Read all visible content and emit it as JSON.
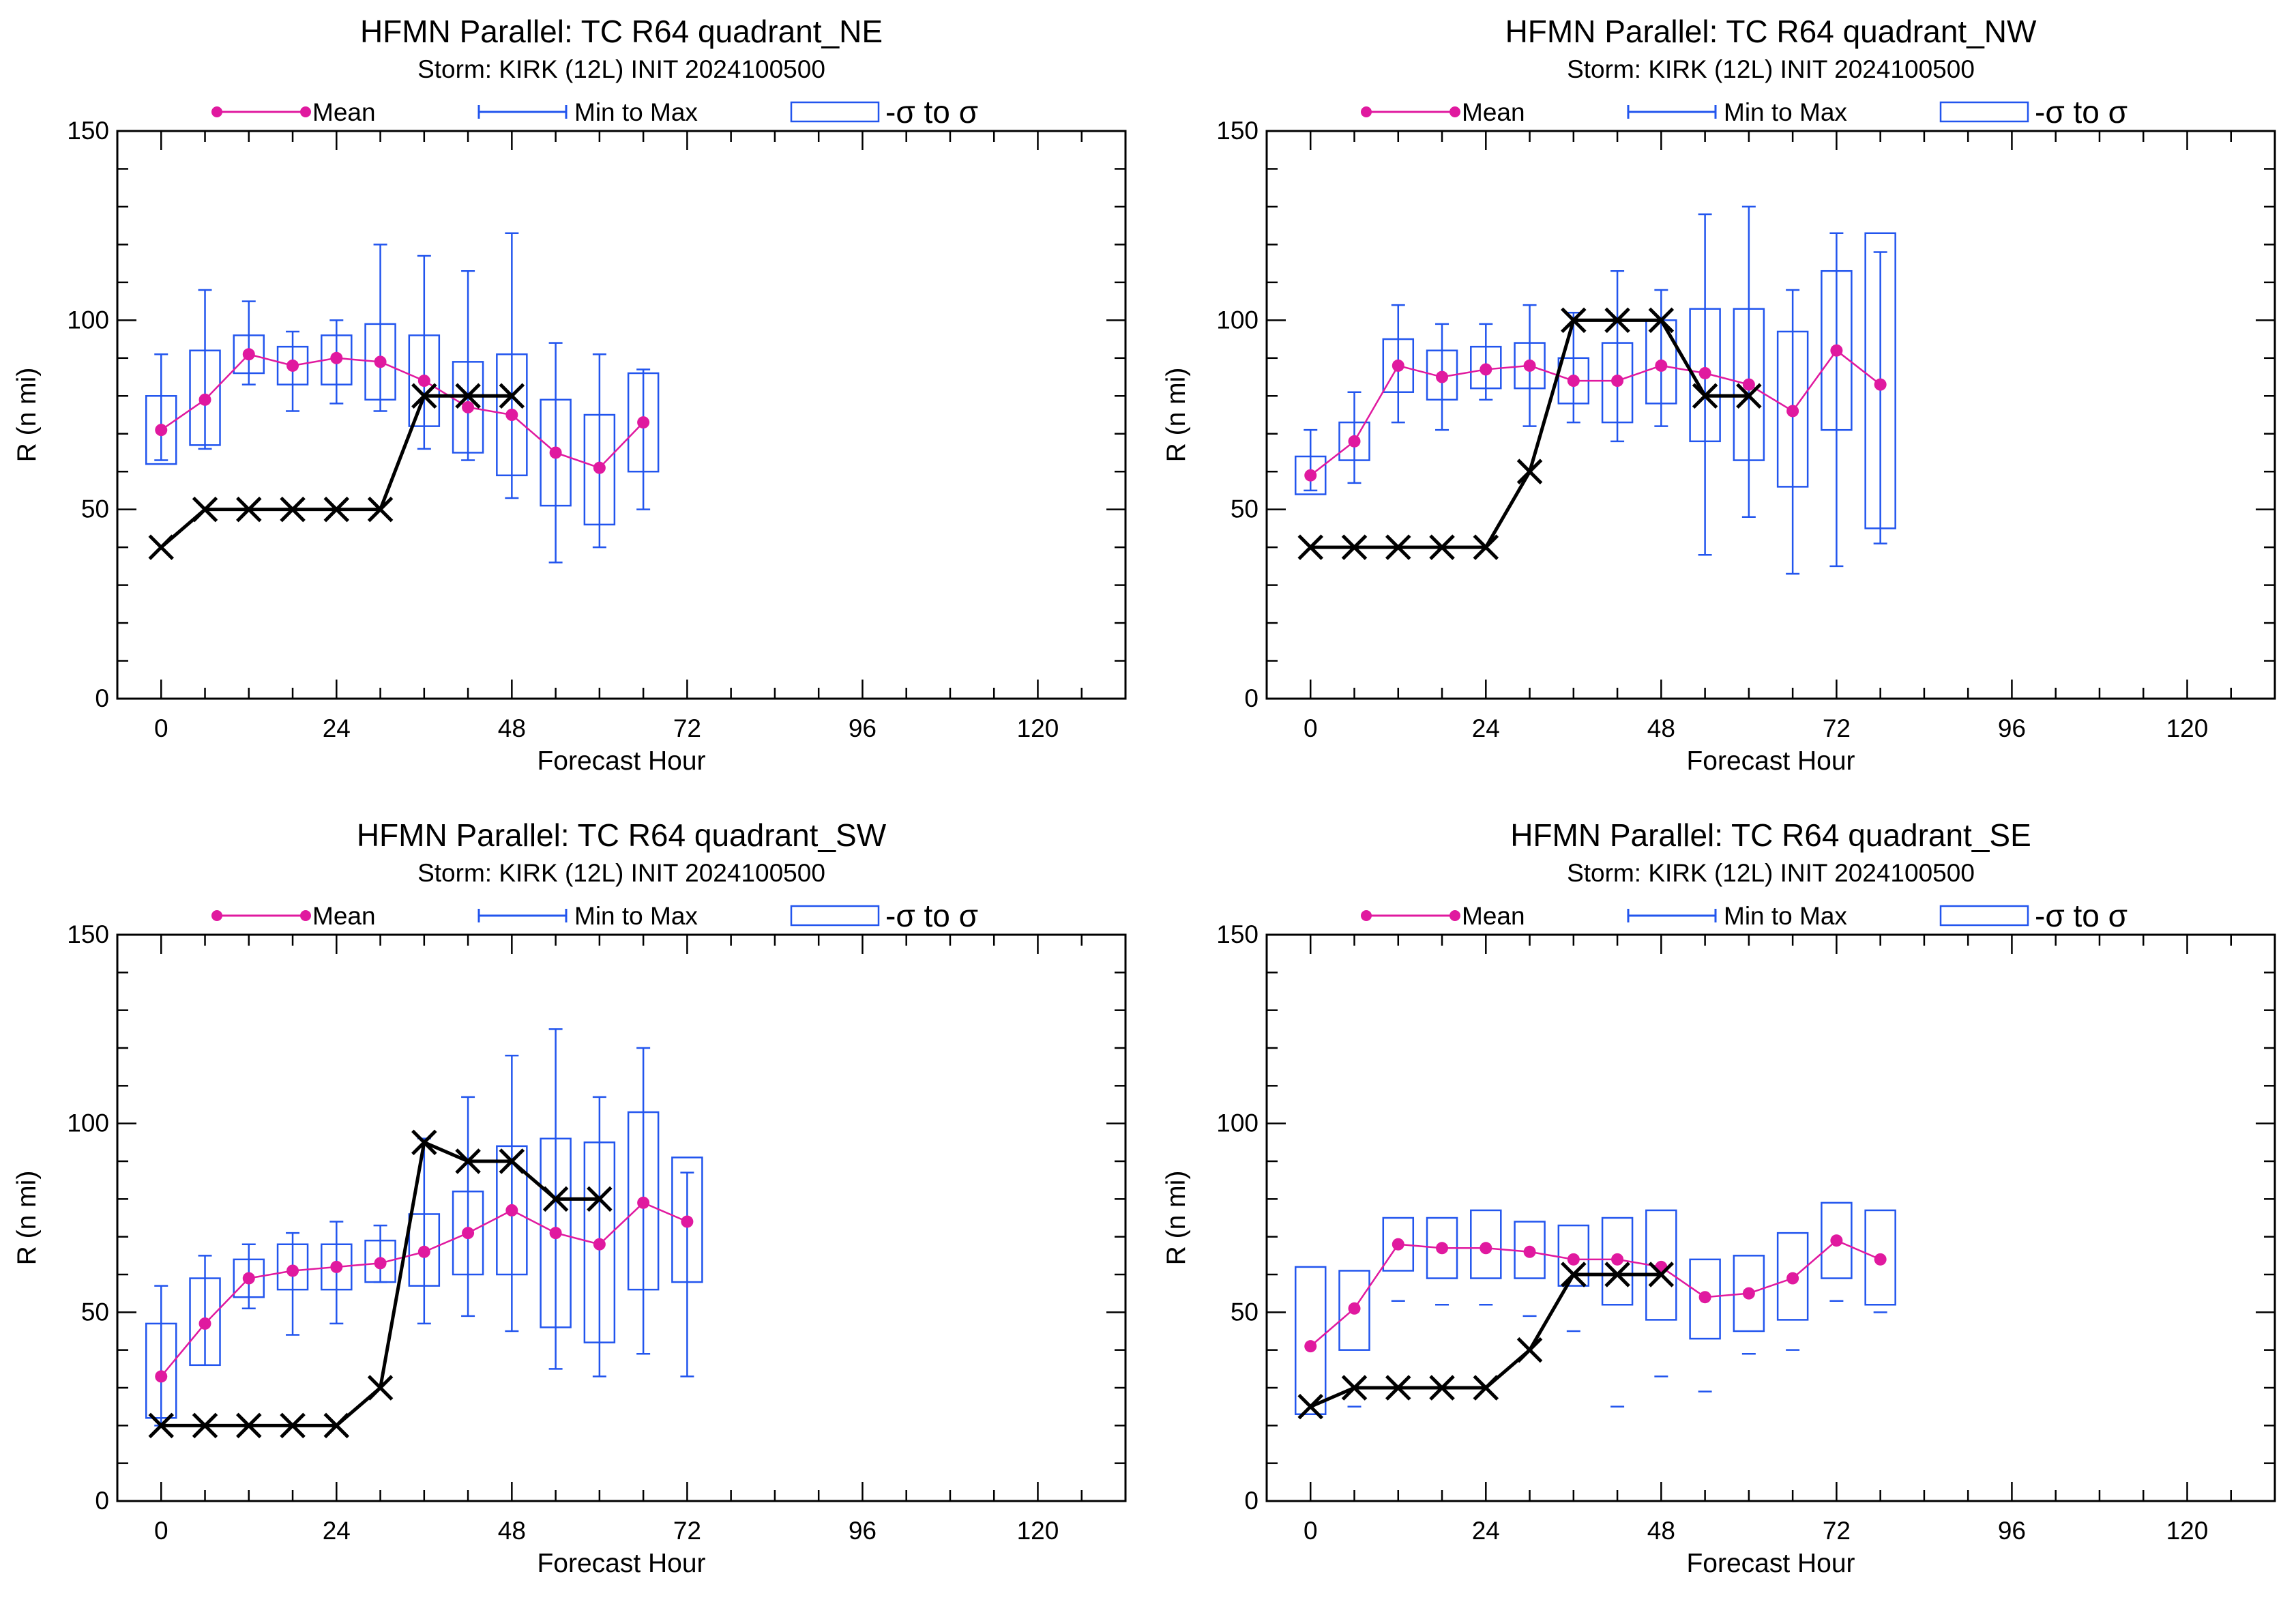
{
  "legend": {
    "mean": "Mean",
    "minmax": "Min to Max",
    "sigma": "-σ to σ"
  },
  "colors": {
    "mean": "#e0199f",
    "ensemble": "#2255ee",
    "observed": "#000000"
  },
  "chart_data": [
    {
      "type": "box",
      "title": "HFMN Parallel: TC  R64 quadrant_NE",
      "subtitle": "Storm: KIRK (12L) INIT 2024100500",
      "xlabel": "Forecast Hour",
      "ylabel": "R (n mi)",
      "xlim": [
        -6,
        132
      ],
      "ylim": [
        0,
        150
      ],
      "xticks": [
        0,
        24,
        48,
        72,
        96,
        120
      ],
      "yticks": [
        0,
        50,
        100,
        150
      ],
      "series": [
        {
          "name": "Mean",
          "x": [
            0,
            6,
            12,
            18,
            24,
            30,
            36,
            42,
            48,
            54,
            60,
            66
          ],
          "y": [
            71,
            79,
            91,
            88,
            90,
            89,
            84,
            77,
            75,
            65,
            61,
            73
          ]
        },
        {
          "name": "Min to Max",
          "x": [
            0,
            6,
            12,
            18,
            24,
            30,
            36,
            42,
            48,
            54,
            60,
            66
          ],
          "min": [
            63,
            66,
            83,
            76,
            78,
            76,
            66,
            63,
            53,
            36,
            40,
            50
          ],
          "max": [
            91,
            108,
            105,
            97,
            100,
            120,
            117,
            113,
            123,
            94,
            91,
            87
          ]
        },
        {
          "name": "-σ to σ",
          "x": [
            0,
            6,
            12,
            18,
            24,
            30,
            36,
            42,
            48,
            54,
            60,
            66
          ],
          "low": [
            62,
            67,
            86,
            83,
            83,
            79,
            72,
            65,
            59,
            51,
            46,
            60
          ],
          "high": [
            80,
            92,
            96,
            93,
            96,
            99,
            96,
            89,
            91,
            79,
            75,
            86
          ]
        },
        {
          "x": [
            0,
            6,
            12,
            18,
            24,
            30,
            36,
            42,
            48
          ],
          "y": [
            40,
            50,
            50,
            50,
            50,
            50,
            80,
            80,
            80
          ]
        }
      ]
    },
    {
      "type": "box",
      "title": "HFMN Parallel: TC  R64 quadrant_NW",
      "subtitle": "Storm: KIRK (12L) INIT 2024100500",
      "xlabel": "Forecast Hour",
      "ylabel": "R (n mi)",
      "xlim": [
        -6,
        132
      ],
      "ylim": [
        0,
        150
      ],
      "xticks": [
        0,
        24,
        48,
        72,
        96,
        120
      ],
      "yticks": [
        0,
        50,
        100,
        150
      ],
      "series": [
        {
          "name": "Mean",
          "x": [
            0,
            6,
            12,
            18,
            24,
            30,
            36,
            42,
            48,
            54,
            60,
            66,
            72,
            78
          ],
          "y": [
            59,
            68,
            88,
            85,
            87,
            88,
            84,
            84,
            88,
            86,
            83,
            76,
            92,
            83
          ]
        },
        {
          "name": "Min to Max",
          "x": [
            0,
            6,
            12,
            18,
            24,
            30,
            36,
            42,
            48,
            54,
            60,
            66,
            72,
            78
          ],
          "min": [
            55,
            57,
            73,
            71,
            79,
            72,
            73,
            68,
            72,
            38,
            48,
            33,
            35,
            41
          ],
          "max": [
            71,
            81,
            104,
            99,
            99,
            104,
            102,
            113,
            108,
            128,
            130,
            108,
            123,
            118
          ]
        },
        {
          "name": "-σ to σ",
          "x": [
            0,
            6,
            12,
            18,
            24,
            30,
            36,
            42,
            48,
            54,
            60,
            66,
            72,
            78
          ],
          "low": [
            54,
            63,
            81,
            79,
            82,
            82,
            78,
            73,
            78,
            68,
            63,
            56,
            71,
            45
          ],
          "high": [
            64,
            73,
            95,
            92,
            93,
            94,
            90,
            94,
            100,
            103,
            103,
            97,
            113,
            123
          ]
        },
        {
          "x": [
            0,
            6,
            12,
            18,
            24,
            30,
            36,
            42,
            48,
            54,
            60
          ],
          "y": [
            40,
            40,
            40,
            40,
            40,
            60,
            100,
            100,
            100,
            80,
            80
          ]
        }
      ]
    },
    {
      "type": "box",
      "title": "HFMN Parallel: TC  R64 quadrant_SW",
      "subtitle": "Storm: KIRK (12L) INIT 2024100500",
      "xlabel": "Forecast Hour",
      "ylabel": "R (n mi)",
      "xlim": [
        -6,
        132
      ],
      "ylim": [
        0,
        150
      ],
      "xticks": [
        0,
        24,
        48,
        72,
        96,
        120
      ],
      "yticks": [
        0,
        50,
        100,
        150
      ],
      "series": [
        {
          "name": "Mean",
          "x": [
            0,
            6,
            12,
            18,
            24,
            30,
            36,
            42,
            48,
            54,
            60,
            66,
            72
          ],
          "y": [
            33,
            47,
            59,
            61,
            62,
            63,
            66,
            71,
            77,
            71,
            68,
            79,
            74
          ]
        },
        {
          "name": "Min to Max",
          "x": [
            0,
            6,
            12,
            18,
            24,
            30,
            36,
            42,
            48,
            54,
            60,
            66,
            72
          ],
          "min": [
            20,
            36,
            51,
            44,
            47,
            58,
            47,
            49,
            45,
            35,
            33,
            39,
            33
          ],
          "max": [
            57,
            65,
            68,
            71,
            74,
            73,
            96,
            107,
            118,
            125,
            107,
            120,
            87
          ]
        },
        {
          "name": "-σ to σ",
          "x": [
            0,
            6,
            12,
            18,
            24,
            30,
            36,
            42,
            48,
            54,
            60,
            66,
            72
          ],
          "low": [
            22,
            36,
            54,
            56,
            56,
            58,
            57,
            60,
            60,
            46,
            42,
            56,
            58
          ],
          "high": [
            47,
            59,
            64,
            68,
            68,
            69,
            76,
            82,
            94,
            96,
            95,
            103,
            91
          ]
        },
        {
          "x": [
            0,
            6,
            12,
            18,
            24,
            30,
            36,
            42,
            48,
            54,
            60
          ],
          "y": [
            20,
            20,
            20,
            20,
            20,
            30,
            95,
            90,
            90,
            80,
            80
          ]
        }
      ]
    },
    {
      "type": "box",
      "title": "HFMN Parallel: TC  R64 quadrant_SE",
      "subtitle": "Storm: KIRK (12L) INIT 2024100500",
      "xlabel": "Forecast Hour",
      "ylabel": "R (n mi)",
      "xlim": [
        -6,
        132
      ],
      "ylim": [
        0,
        150
      ],
      "xticks": [
        0,
        24,
        48,
        72,
        96,
        120
      ],
      "yticks": [
        0,
        50,
        100,
        150
      ],
      "series": [
        {
          "name": "Mean",
          "x": [
            0,
            6,
            12,
            18,
            24,
            30,
            36,
            42,
            48,
            54,
            60,
            66,
            72,
            78
          ],
          "y": [
            41,
            51,
            68,
            67,
            67,
            66,
            64,
            64,
            62,
            54,
            55,
            59,
            69,
            64
          ]
        },
        {
          "name": "Min to Max",
          "x": [
            0,
            6,
            12,
            18,
            24,
            30,
            36,
            42,
            48,
            54,
            60,
            66,
            72,
            78
          ],
          "min": [
            23,
            25,
            53,
            52,
            52,
            49,
            45,
            25,
            33,
            29,
            39,
            40,
            53,
            50
          ]
        },
        {
          "name": "-σ to σ",
          "x": [
            0,
            6,
            12,
            18,
            24,
            30,
            36,
            42,
            48,
            54,
            60,
            66,
            72,
            78
          ],
          "low": [
            23,
            40,
            61,
            59,
            59,
            59,
            57,
            52,
            48,
            43,
            45,
            48,
            59,
            52
          ],
          "high": [
            62,
            61,
            75,
            75,
            77,
            74,
            73,
            75,
            77,
            64,
            65,
            71,
            79,
            77
          ]
        },
        {
          "x": [
            0,
            6,
            12,
            18,
            24,
            30,
            36,
            42,
            48
          ],
          "y": [
            25,
            30,
            30,
            30,
            30,
            40,
            60,
            60,
            60
          ]
        }
      ]
    }
  ]
}
